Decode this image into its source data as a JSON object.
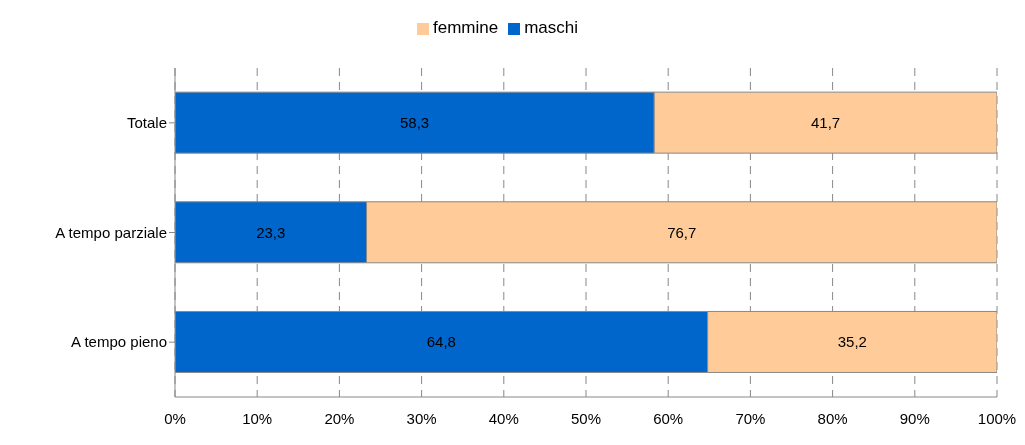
{
  "chart_data": {
    "type": "bar",
    "orientation": "horizontal",
    "stacked": true,
    "categories": [
      "Totale",
      "A tempo parziale",
      "A tempo pieno"
    ],
    "series": [
      {
        "name": "maschi",
        "color": "#0066cc",
        "values": [
          58.3,
          23.3,
          64.8
        ],
        "value_labels": [
          "58,3",
          "23,3",
          "64,8"
        ]
      },
      {
        "name": "femmine",
        "color": "#ffcc99",
        "values": [
          41.7,
          76.7,
          35.2
        ],
        "value_labels": [
          "41,7",
          "76,7",
          "35,2"
        ]
      }
    ],
    "xlim": [
      0,
      100
    ],
    "xticks": [
      {
        "value": 0,
        "label": "0%"
      },
      {
        "value": 10,
        "label": "10%"
      },
      {
        "value": 20,
        "label": "20%"
      },
      {
        "value": 30,
        "label": "30%"
      },
      {
        "value": 40,
        "label": "40%"
      },
      {
        "value": 50,
        "label": "50%"
      },
      {
        "value": 60,
        "label": "60%"
      },
      {
        "value": 70,
        "label": "70%"
      },
      {
        "value": 80,
        "label": "80%"
      },
      {
        "value": 90,
        "label": "90%"
      },
      {
        "value": 100,
        "label": "100%"
      }
    ],
    "grid": "x",
    "legend": "top"
  }
}
